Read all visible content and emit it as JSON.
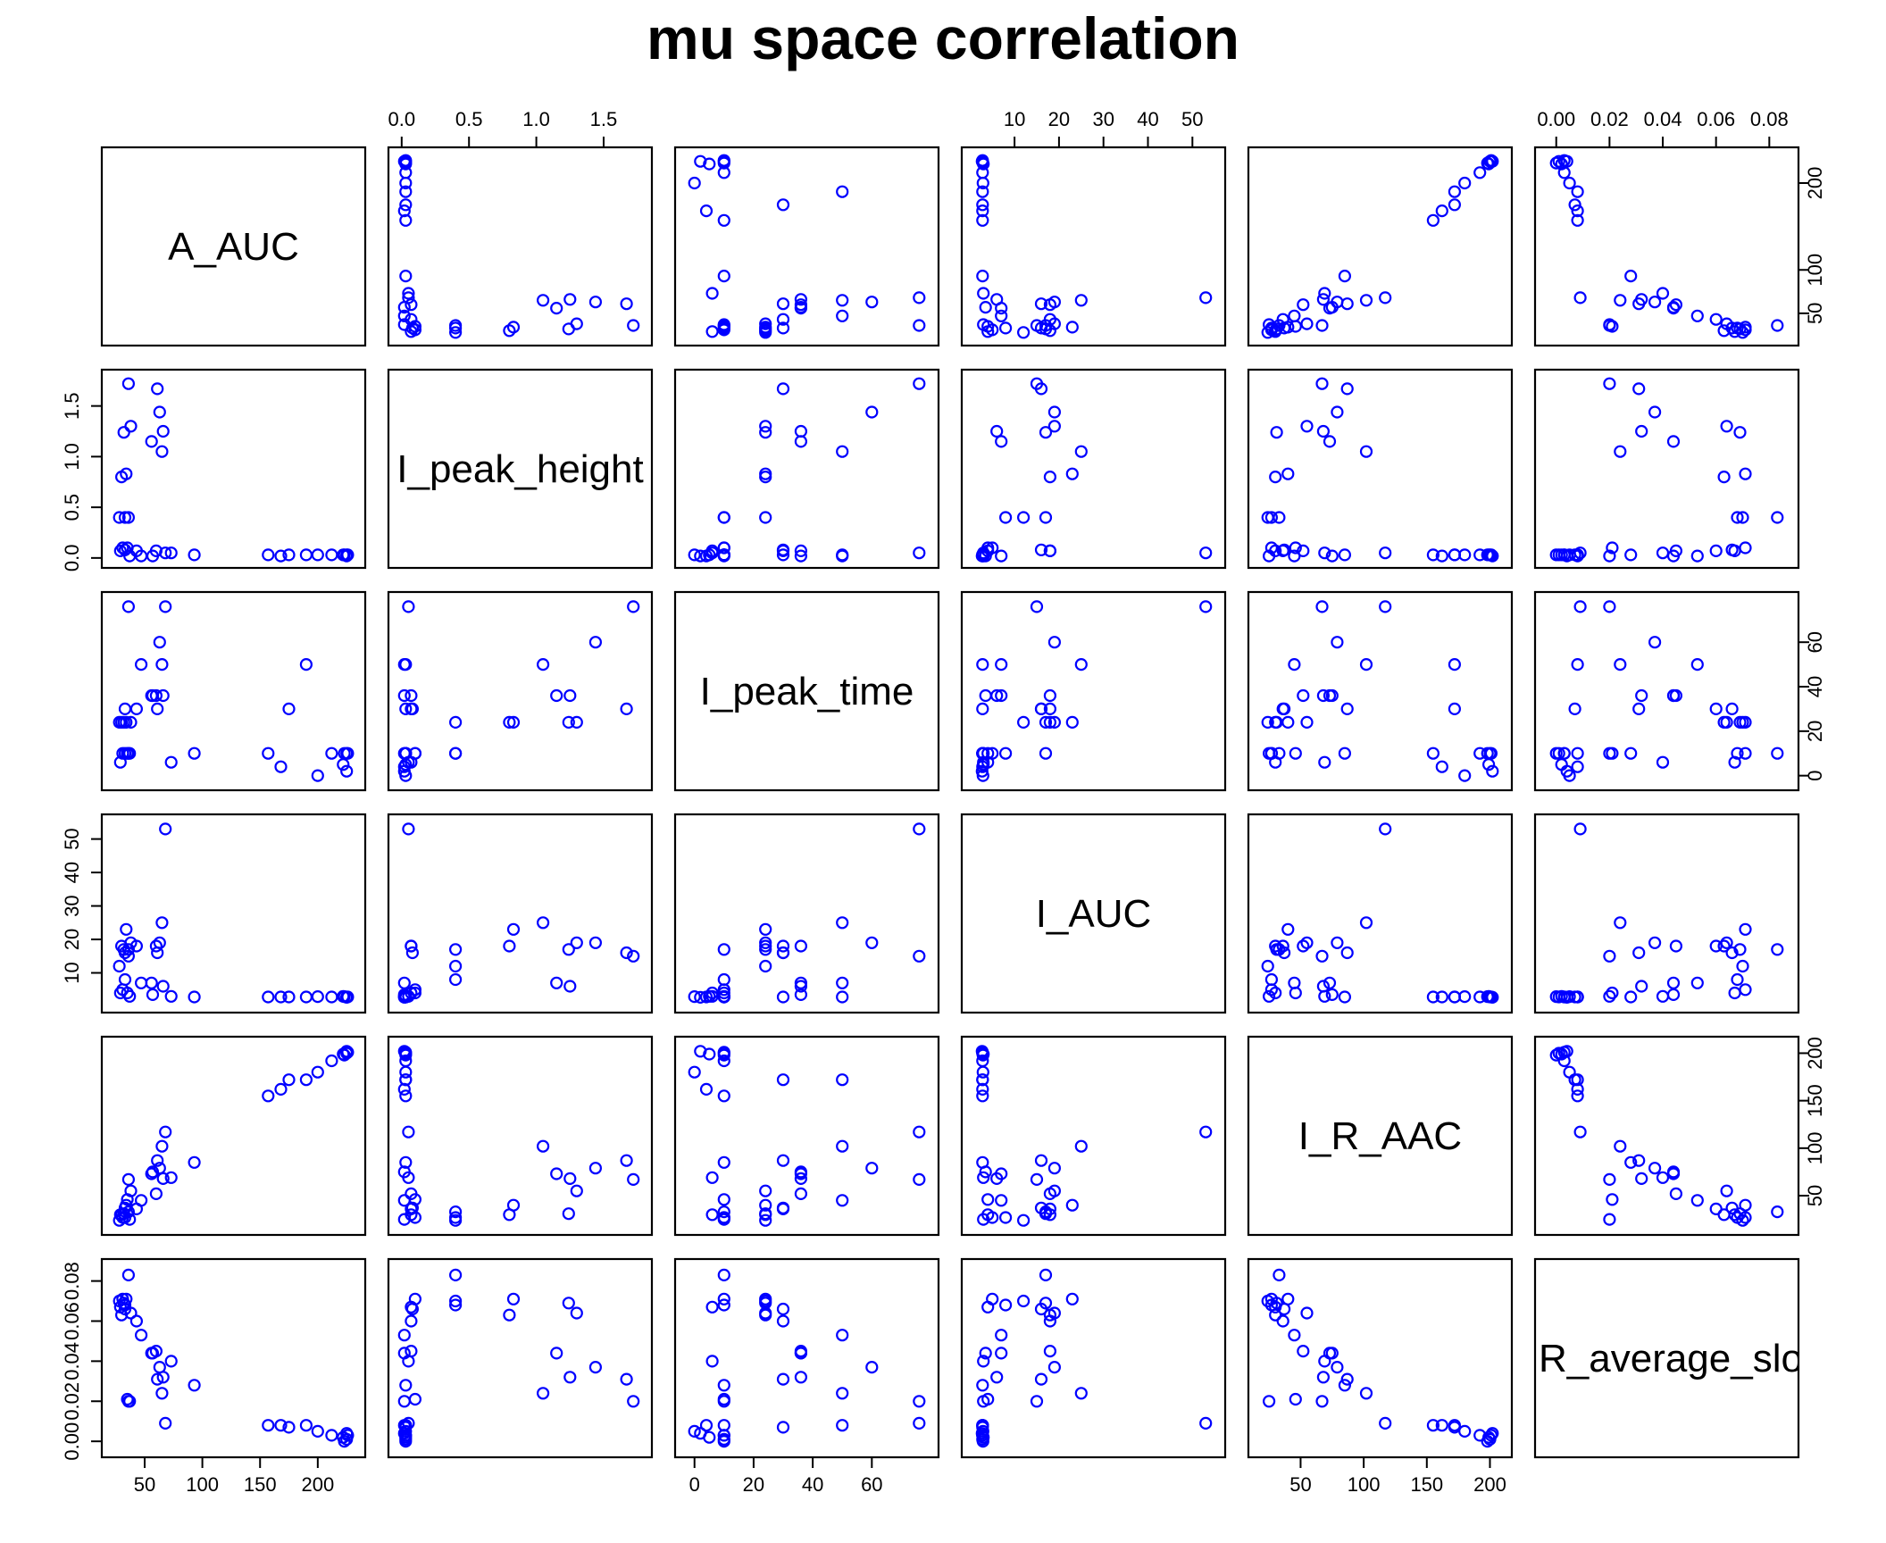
{
  "chart_data": {
    "type": "scatter",
    "subtype": "scatterplot-matrix",
    "title": "mu space correlation",
    "point_color": "#0000ff",
    "variables": [
      "A_AUC",
      "I_peak_height",
      "I_peak_time",
      "I_AUC",
      "I_R_AAC",
      "R_average_slope"
    ],
    "diagonal_labels": [
      "A_AUC",
      "I_peak_height",
      "I_peak_time",
      "I_AUC",
      "I_R_AAC",
      "R_average_slop"
    ],
    "ranges": [
      [
        22,
        232
      ],
      [
        -0.02,
        1.78
      ],
      [
        -3,
        79
      ],
      [
        0.5,
        55
      ],
      [
        17,
        209
      ],
      [
        -0.004,
        0.087
      ]
    ],
    "ticks": [
      {
        "values": [
          50,
          100,
          150,
          200
        ],
        "labels": [
          "50",
          "100",
          "150",
          "200"
        ],
        "shown": [
          "bottom"
        ]
      },
      {
        "values": [
          0,
          0.5,
          1.0,
          1.5
        ],
        "labels": [
          "0.0",
          "0.5",
          "1.0",
          "1.5"
        ],
        "shown": [
          "top",
          "left"
        ]
      },
      {
        "values": [
          0,
          20,
          40,
          60
        ],
        "labels": [
          "0",
          "20",
          "40",
          "60"
        ],
        "shown": [
          "bottom",
          "right"
        ]
      },
      {
        "values": [
          10,
          20,
          30,
          40,
          50
        ],
        "labels": [
          "10",
          "20",
          "30",
          "40",
          "50"
        ],
        "shown": [
          "top",
          "left"
        ]
      },
      {
        "values": [
          50,
          100,
          150,
          200
        ],
        "labels": [
          "50",
          "100",
          "150",
          "200"
        ],
        "shown": [
          "bottom",
          "right"
        ]
      },
      {
        "values": [
          0,
          0.02,
          0.04,
          0.06,
          0.08
        ],
        "labels": [
          "0.00",
          "0.02",
          "0.04",
          "0.06",
          "0.08"
        ],
        "shown": [
          "top",
          "left"
        ]
      }
    ],
    "right_ticks_row0": {
      "values": [
        50,
        100,
        200
      ],
      "labels": [
        "50",
        "100",
        "200"
      ]
    },
    "points": [
      [
        225,
        0.03,
        10,
        2.8,
        200,
        0.001
      ],
      [
        226,
        0.03,
        10,
        2.8,
        201,
        0.003
      ],
      [
        225,
        0.02,
        2,
        2.7,
        202,
        0.004
      ],
      [
        222,
        0.03,
        5,
        3.0,
        199,
        0.002
      ],
      [
        223,
        0.03,
        10,
        2.9,
        198,
        0.0
      ],
      [
        212,
        0.03,
        10,
        2.8,
        192,
        0.003
      ],
      [
        200,
        0.03,
        0,
        2.9,
        180,
        0.005
      ],
      [
        190,
        0.03,
        50,
        2.8,
        172,
        0.008
      ],
      [
        175,
        0.03,
        30,
        2.8,
        172,
        0.007
      ],
      [
        168,
        0.02,
        4,
        2.8,
        162,
        0.008
      ],
      [
        157,
        0.03,
        10,
        2.8,
        155,
        0.008
      ],
      [
        93,
        0.03,
        10,
        2.8,
        85,
        0.028
      ],
      [
        68,
        0.05,
        76,
        53,
        117,
        0.009
      ],
      [
        65,
        1.05,
        50,
        25,
        102,
        0.024
      ],
      [
        61,
        1.67,
        30,
        16,
        87,
        0.031
      ],
      [
        73,
        0.05,
        6,
        3.0,
        69,
        0.04
      ],
      [
        63,
        1.44,
        60,
        19,
        79,
        0.037
      ],
      [
        57,
        0.02,
        36,
        3.5,
        75,
        0.044
      ],
      [
        56,
        1.15,
        36,
        7.0,
        73,
        0.044
      ],
      [
        66,
        1.25,
        36,
        6.0,
        68,
        0.032
      ],
      [
        47,
        0.02,
        50,
        7.0,
        45,
        0.053
      ],
      [
        60,
        0.07,
        36,
        18,
        52,
        0.045
      ],
      [
        43,
        0.07,
        30,
        18,
        36,
        0.06
      ],
      [
        36,
        1.72,
        76,
        15,
        67,
        0.02
      ],
      [
        38,
        1.3,
        24,
        19,
        55,
        0.064
      ],
      [
        33,
        0.08,
        30,
        16,
        37,
        0.066
      ],
      [
        32,
        1.24,
        24,
        17,
        31,
        0.069
      ],
      [
        30,
        0.8,
        24,
        18,
        30,
        0.063
      ],
      [
        29,
        0.07,
        6,
        4.0,
        30,
        0.067
      ],
      [
        28,
        0.4,
        24,
        12,
        24,
        0.07
      ],
      [
        33,
        0.4,
        10,
        8.0,
        27,
        0.068
      ],
      [
        31,
        0.1,
        10,
        5.0,
        27,
        0.071
      ],
      [
        34,
        0.83,
        24,
        23,
        40,
        0.071
      ],
      [
        36,
        0.4,
        10,
        17,
        33,
        0.083
      ],
      [
        35,
        0.1,
        10,
        4.0,
        46,
        0.021
      ],
      [
        37,
        0.02,
        10,
        3.0,
        25,
        0.02
      ]
    ]
  }
}
